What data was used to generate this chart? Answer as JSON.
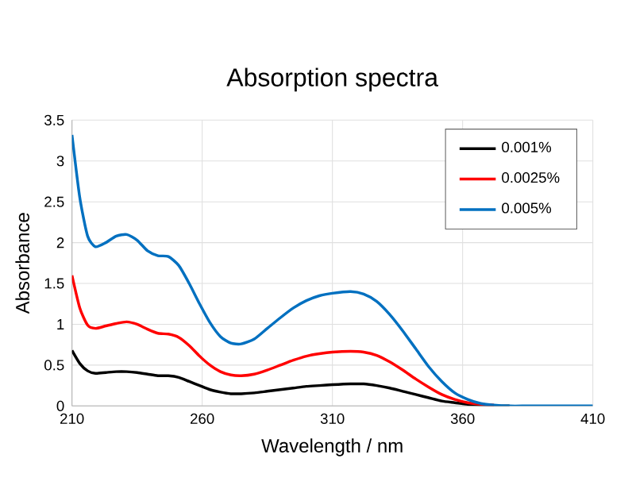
{
  "chart_data": {
    "type": "line",
    "title": "Absorption spectra",
    "xlabel": "Wavelength / nm",
    "ylabel": "Absorbance",
    "x": [
      210,
      213,
      216,
      219,
      223,
      227,
      231,
      235,
      239,
      243,
      247,
      251,
      255,
      259,
      263,
      267,
      271,
      275,
      280,
      285,
      290,
      295,
      300,
      305,
      310,
      317,
      322,
      327,
      332,
      337,
      342,
      347,
      352,
      357,
      362,
      367,
      372,
      378,
      385,
      395,
      410
    ],
    "series": [
      {
        "name": "0.001%",
        "color": "#000000",
        "values": [
          0.68,
          0.52,
          0.43,
          0.4,
          0.41,
          0.42,
          0.42,
          0.41,
          0.39,
          0.37,
          0.37,
          0.35,
          0.3,
          0.25,
          0.2,
          0.17,
          0.15,
          0.15,
          0.16,
          0.18,
          0.2,
          0.22,
          0.24,
          0.25,
          0.26,
          0.27,
          0.27,
          0.25,
          0.22,
          0.18,
          0.14,
          0.1,
          0.06,
          0.04,
          0.02,
          0.01,
          0,
          0,
          null,
          null,
          null
        ]
      },
      {
        "name": "0.0025%",
        "color": "#ff0000",
        "values": [
          1.6,
          1.2,
          0.99,
          0.95,
          0.98,
          1.01,
          1.03,
          1.0,
          0.94,
          0.89,
          0.88,
          0.84,
          0.74,
          0.61,
          0.5,
          0.42,
          0.38,
          0.37,
          0.39,
          0.44,
          0.5,
          0.56,
          0.61,
          0.64,
          0.66,
          0.67,
          0.66,
          0.62,
          0.54,
          0.44,
          0.33,
          0.23,
          0.14,
          0.08,
          0.04,
          0.02,
          0.01,
          null,
          null,
          null,
          null
        ]
      },
      {
        "name": "0.005%",
        "color": "#0070c0",
        "values": [
          3.32,
          2.55,
          2.08,
          1.95,
          2.0,
          2.08,
          2.1,
          2.03,
          1.9,
          1.84,
          1.83,
          1.72,
          1.5,
          1.25,
          1.02,
          0.85,
          0.77,
          0.76,
          0.82,
          0.95,
          1.08,
          1.2,
          1.29,
          1.35,
          1.38,
          1.4,
          1.37,
          1.28,
          1.12,
          0.92,
          0.7,
          0.48,
          0.3,
          0.16,
          0.08,
          0.03,
          0.01,
          0,
          0,
          0,
          0
        ]
      }
    ],
    "xlim": [
      210,
      410
    ],
    "xticks": [
      210,
      260,
      310,
      360,
      410
    ],
    "ylim": [
      0,
      3.5
    ],
    "yticks": [
      0,
      0.5,
      1,
      1.5,
      2,
      2.5,
      3,
      3.5
    ],
    "grid": true,
    "legend": "top right",
    "marker": "none",
    "line_style": "solid"
  }
}
